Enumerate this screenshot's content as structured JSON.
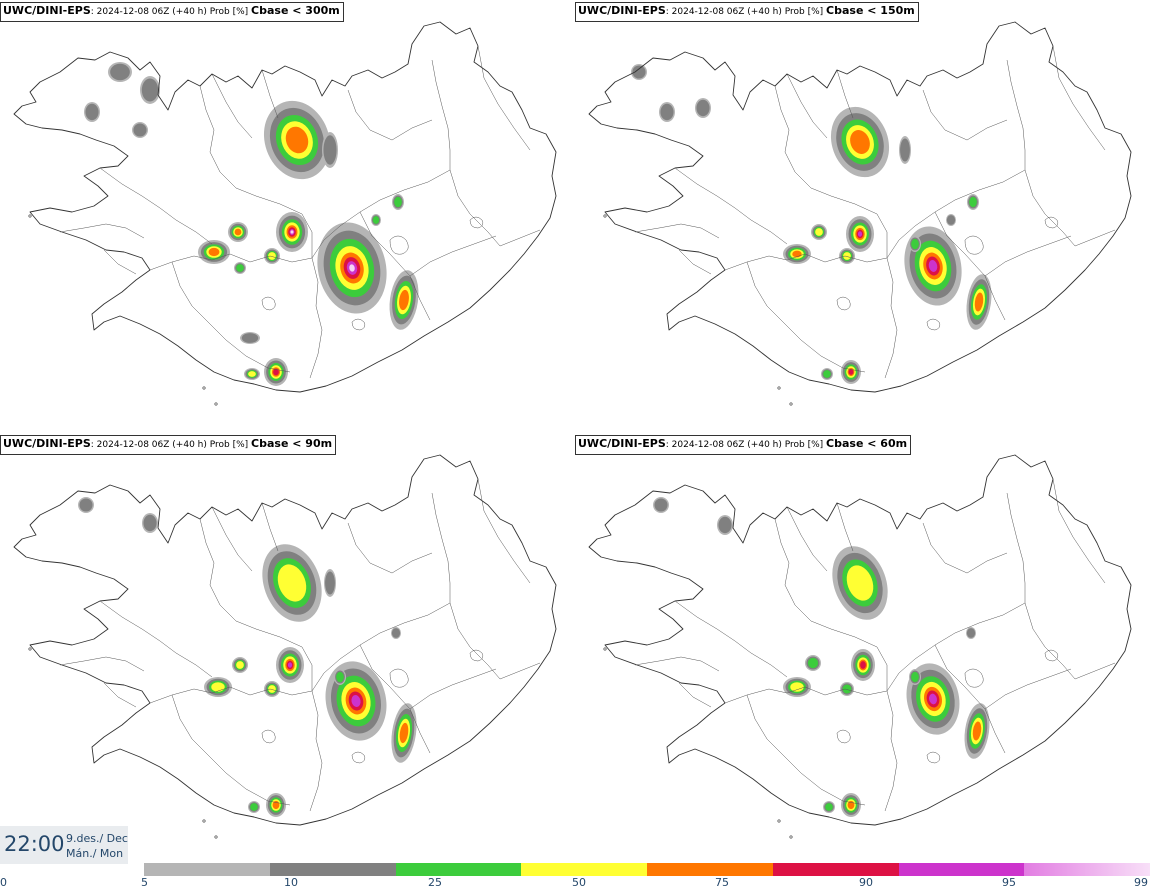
{
  "panels": [
    {
      "model": "UWC/DINI-EPS",
      "run": ": 2024-12-08 06Z (+40 h) Prob [%]",
      "variable": "Cbase < 300m"
    },
    {
      "model": "UWC/DINI-EPS",
      "run": ": 2024-12-08 06Z (+40 h) Prob [%]",
      "variable": "Cbase < 150m"
    },
    {
      "model": "UWC/DINI-EPS",
      "run": ": 2024-12-08 06Z (+40 h) Prob [%]",
      "variable": "Cbase < 90m"
    },
    {
      "model": "UWC/DINI-EPS",
      "run": ": 2024-12-08 06Z (+40 h) Prob [%]",
      "variable": "Cbase < 60m"
    }
  ],
  "valid_time": {
    "time": "22:00",
    "date_line": "9.des./ Dec",
    "day_line": "Mán./ Mon"
  },
  "colorbar": {
    "ticks": [
      "0",
      "5",
      "10",
      "25",
      "50",
      "75",
      "90",
      "95",
      "99"
    ],
    "colors": [
      "#b5b5b5",
      "#808080",
      "#3ccc3c",
      "#ffff33",
      "#ff7700",
      "#dd1144",
      "#cc33cc",
      "#f6d3f6"
    ]
  }
}
